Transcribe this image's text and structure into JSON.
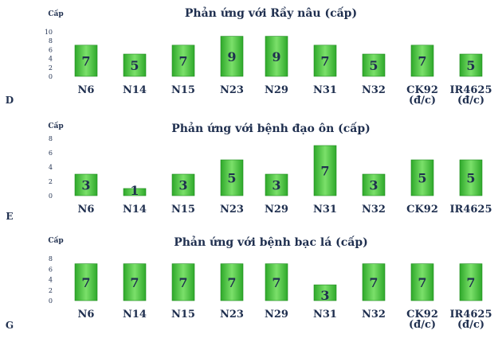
{
  "colors": {
    "bar_light": "#7be06a",
    "bar_dark": "#2ea82a",
    "bar_edge": "#1f8c1f",
    "text": "#1f2f4f"
  },
  "chart_data": [
    {
      "type": "bar",
      "panel_label": "D",
      "title": "Phản ứng với Rầy nâu (cấp)",
      "ylabel": "Cấp",
      "ylim": [
        0,
        10
      ],
      "yticks": [
        0,
        2,
        4,
        6,
        8,
        10
      ],
      "categories": [
        "N6",
        "N14",
        "N15",
        "N23",
        "N29",
        "N31",
        "N32",
        "CK92\n(đ/c)",
        "IR4625\n(đ/c)"
      ],
      "values": [
        7,
        5,
        7,
        9,
        9,
        7,
        5,
        7,
        5
      ]
    },
    {
      "type": "bar",
      "panel_label": "E",
      "title": "Phản ứng với bệnh đạo ôn (cấp)",
      "ylabel": "Cấp",
      "ylim": [
        0,
        8
      ],
      "yticks": [
        0,
        2,
        4,
        6,
        8
      ],
      "categories": [
        "N6",
        "N14",
        "N15",
        "N23",
        "N29",
        "N31",
        "N32",
        "CK92",
        "IR4625"
      ],
      "values": [
        3,
        1,
        3,
        5,
        3,
        7,
        3,
        5,
        5
      ]
    },
    {
      "type": "bar",
      "panel_label": "G",
      "title": "Phản ứng với bệnh bạc lá (cấp)",
      "ylabel": "Cấp",
      "ylim": [
        0,
        8
      ],
      "yticks": [
        0,
        2,
        4,
        6,
        8
      ],
      "categories": [
        "N6",
        "N14",
        "N15",
        "N23",
        "N29",
        "N31",
        "N32",
        "CK92\n(đ/c)",
        "IR4625\n(đ/c)"
      ],
      "values": [
        7,
        7,
        7,
        7,
        7,
        3,
        7,
        7,
        7
      ]
    }
  ]
}
